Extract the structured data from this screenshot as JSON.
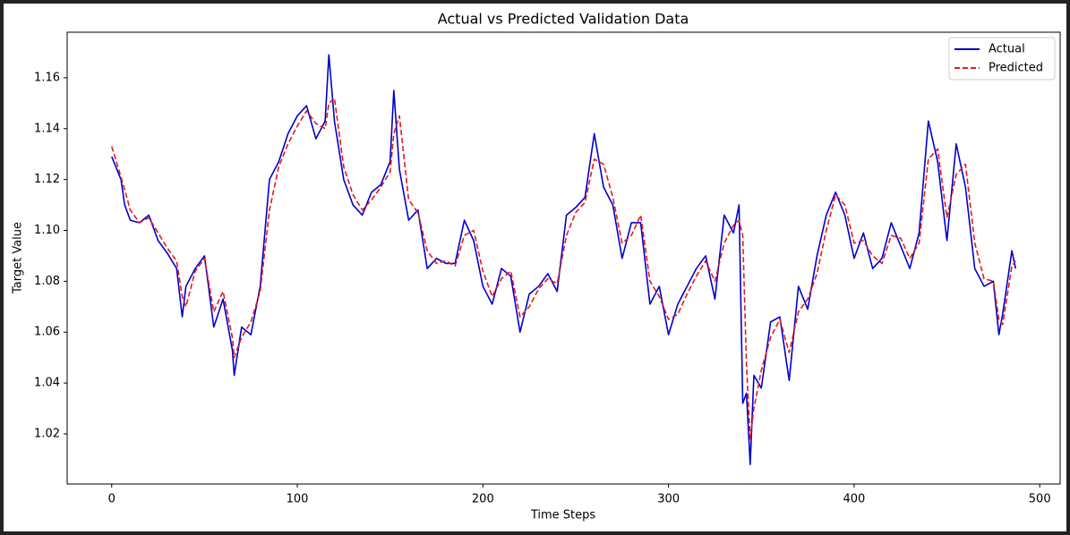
{
  "chart_data": {
    "type": "line",
    "title": "Actual vs Predicted Validation Data",
    "xlabel": "Time Steps",
    "ylabel": "Target Value",
    "x": [
      0,
      5,
      7,
      10,
      15,
      20,
      25,
      30,
      35,
      38,
      40,
      45,
      50,
      55,
      60,
      65,
      66,
      70,
      75,
      80,
      85,
      90,
      95,
      100,
      105,
      110,
      115,
      117,
      120,
      125,
      130,
      135,
      140,
      145,
      150,
      152,
      155,
      160,
      165,
      170,
      175,
      180,
      185,
      190,
      195,
      200,
      205,
      210,
      215,
      220,
      225,
      230,
      235,
      240,
      245,
      250,
      255,
      260,
      265,
      270,
      275,
      280,
      285,
      290,
      295,
      300,
      305,
      310,
      315,
      320,
      325,
      330,
      335,
      338,
      340,
      342,
      344,
      346,
      350,
      355,
      360,
      365,
      370,
      375,
      380,
      385,
      390,
      395,
      400,
      405,
      410,
      415,
      420,
      425,
      430,
      435,
      440,
      445,
      450,
      455,
      460,
      465,
      470,
      475,
      478,
      480,
      485,
      487
    ],
    "series": [
      {
        "name": "Actual",
        "color": "#0000cc",
        "dash": false,
        "values": [
          1.129,
          1.12,
          1.11,
          1.104,
          1.103,
          1.106,
          1.096,
          1.091,
          1.085,
          1.066,
          1.078,
          1.085,
          1.09,
          1.062,
          1.073,
          1.053,
          1.043,
          1.062,
          1.059,
          1.078,
          1.12,
          1.127,
          1.138,
          1.145,
          1.149,
          1.136,
          1.143,
          1.169,
          1.143,
          1.12,
          1.11,
          1.106,
          1.115,
          1.118,
          1.127,
          1.155,
          1.124,
          1.104,
          1.108,
          1.085,
          1.089,
          1.087,
          1.087,
          1.104,
          1.096,
          1.078,
          1.071,
          1.085,
          1.082,
          1.06,
          1.075,
          1.078,
          1.083,
          1.076,
          1.106,
          1.109,
          1.113,
          1.138,
          1.117,
          1.11,
          1.089,
          1.103,
          1.103,
          1.071,
          1.078,
          1.059,
          1.071,
          1.078,
          1.085,
          1.09,
          1.073,
          1.106,
          1.099,
          1.11,
          1.032,
          1.036,
          1.008,
          1.043,
          1.038,
          1.064,
          1.066,
          1.041,
          1.078,
          1.069,
          1.09,
          1.106,
          1.115,
          1.106,
          1.089,
          1.099,
          1.085,
          1.089,
          1.103,
          1.094,
          1.085,
          1.099,
          1.143,
          1.127,
          1.096,
          1.134,
          1.117,
          1.085,
          1.078,
          1.08,
          1.059,
          1.067,
          1.092,
          1.085
        ]
      },
      {
        "name": "Predicted",
        "color": "#e31a1c",
        "dash": true,
        "values": [
          1.133,
          1.121,
          1.116,
          1.108,
          1.103,
          1.105,
          1.099,
          1.093,
          1.088,
          1.074,
          1.07,
          1.084,
          1.089,
          1.068,
          1.076,
          1.058,
          1.05,
          1.058,
          1.064,
          1.076,
          1.108,
          1.125,
          1.134,
          1.141,
          1.147,
          1.142,
          1.14,
          1.15,
          1.152,
          1.125,
          1.114,
          1.108,
          1.112,
          1.117,
          1.123,
          1.138,
          1.145,
          1.112,
          1.107,
          1.092,
          1.087,
          1.088,
          1.086,
          1.098,
          1.1,
          1.084,
          1.074,
          1.081,
          1.084,
          1.066,
          1.07,
          1.077,
          1.081,
          1.079,
          1.098,
          1.107,
          1.111,
          1.128,
          1.126,
          1.113,
          1.095,
          1.098,
          1.106,
          1.08,
          1.074,
          1.065,
          1.067,
          1.075,
          1.082,
          1.088,
          1.08,
          1.095,
          1.102,
          1.104,
          1.098,
          1.047,
          1.018,
          1.03,
          1.045,
          1.058,
          1.065,
          1.052,
          1.068,
          1.073,
          1.083,
          1.1,
          1.114,
          1.11,
          1.095,
          1.096,
          1.09,
          1.087,
          1.098,
          1.097,
          1.089,
          1.095,
          1.128,
          1.132,
          1.105,
          1.122,
          1.126,
          1.095,
          1.081,
          1.08,
          1.065,
          1.063,
          1.086,
          1.088
        ]
      }
    ],
    "xlim": [
      -24,
      511
    ],
    "ylim": [
      1.0003,
      1.1779
    ],
    "xticks": [
      0,
      100,
      200,
      300,
      400,
      500
    ],
    "yticks": [
      1.02,
      1.04,
      1.06,
      1.08,
      {
        "value": 1.1,
        "label": "1.10"
      },
      1.12,
      1.14,
      1.16
    ],
    "legend": "upper right",
    "grid": false
  }
}
